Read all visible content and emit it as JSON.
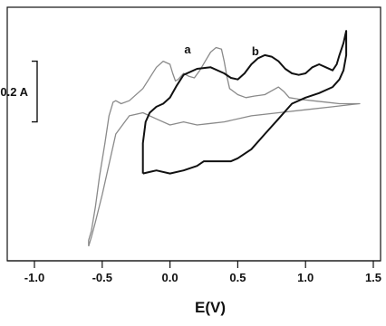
{
  "chart_data": {
    "type": "line",
    "title": "",
    "xlabel": "E(V)",
    "ylabel": "",
    "xlim": [
      -1.0,
      1.5
    ],
    "ylim": [
      -0.4,
      0.4
    ],
    "x_ticks": [
      "-1.0",
      "-0.5",
      "0.0",
      "0.5",
      "1.0",
      "1.5"
    ],
    "x_tick_values": [
      -1.0,
      -0.5,
      0.0,
      0.5,
      1.0,
      1.5
    ],
    "grid": false,
    "legend": "none",
    "scale_bar": {
      "label": "0.2 A",
      "value": 0.2,
      "anchor_x": -0.98,
      "anchor_y_top": 0.24
    },
    "series": [
      {
        "name": "a",
        "label_at": [
          0.13,
          0.265
        ],
        "color": "#8a8a8a",
        "x": [
          -0.6,
          -0.6,
          -0.58,
          -0.55,
          -0.52,
          -0.48,
          -0.45,
          -0.42,
          -0.4,
          -0.36,
          -0.3,
          -0.2,
          -0.1,
          -0.05,
          0.0,
          0.02,
          0.04,
          0.06,
          0.1,
          0.14,
          0.18,
          0.22,
          0.26,
          0.3,
          0.34,
          0.38,
          0.4,
          0.42,
          0.44,
          0.5,
          0.56,
          0.62,
          0.7,
          0.76,
          0.8,
          0.84,
          0.88,
          0.95,
          1.05,
          1.15,
          1.25,
          1.35,
          1.4,
          1.35,
          1.2,
          1.0,
          0.8,
          0.6,
          0.4,
          0.3,
          0.2,
          0.1,
          0.0,
          -0.1,
          -0.2,
          -0.3,
          -0.4,
          -0.45,
          -0.5,
          -0.55,
          -0.58,
          -0.6
        ],
        "y": [
          -0.37,
          -0.35,
          -0.32,
          -0.24,
          -0.14,
          -0.03,
          0.06,
          0.105,
          0.11,
          0.1,
          0.11,
          0.15,
          0.22,
          0.24,
          0.23,
          0.2,
          0.175,
          0.18,
          0.2,
          0.19,
          0.185,
          0.21,
          0.24,
          0.27,
          0.285,
          0.28,
          0.24,
          0.19,
          0.15,
          0.13,
          0.12,
          0.125,
          0.13,
          0.145,
          0.155,
          0.14,
          0.12,
          0.115,
          0.11,
          0.105,
          0.1,
          0.1,
          0.1,
          0.098,
          0.09,
          0.08,
          0.07,
          0.06,
          0.04,
          0.035,
          0.03,
          0.04,
          0.03,
          0.05,
          0.07,
          0.06,
          0.0,
          -0.1,
          -0.2,
          -0.29,
          -0.34,
          -0.37
        ]
      },
      {
        "name": "b",
        "label_at": [
          0.63,
          0.26
        ],
        "color": "#111111",
        "x": [
          -0.2,
          -0.2,
          -0.18,
          -0.15,
          -0.1,
          -0.05,
          0.0,
          0.05,
          0.1,
          0.2,
          0.3,
          0.4,
          0.45,
          0.5,
          0.55,
          0.6,
          0.65,
          0.7,
          0.75,
          0.8,
          0.85,
          0.9,
          0.95,
          1.0,
          1.05,
          1.1,
          1.15,
          1.2,
          1.23,
          1.25,
          1.28,
          1.3,
          1.3,
          1.28,
          1.25,
          1.2,
          1.1,
          1.0,
          0.9,
          0.8,
          0.7,
          0.6,
          0.5,
          0.45,
          0.4,
          0.35,
          0.3,
          0.25,
          0.2,
          0.1,
          0.0,
          -0.1,
          -0.15,
          -0.2
        ],
        "y": [
          -0.13,
          -0.03,
          0.04,
          0.07,
          0.09,
          0.1,
          0.12,
          0.16,
          0.195,
          0.215,
          0.22,
          0.2,
          0.185,
          0.18,
          0.2,
          0.23,
          0.25,
          0.26,
          0.255,
          0.24,
          0.215,
          0.2,
          0.195,
          0.2,
          0.22,
          0.23,
          0.22,
          0.21,
          0.23,
          0.26,
          0.3,
          0.34,
          0.26,
          0.21,
          0.18,
          0.155,
          0.135,
          0.12,
          0.1,
          0.05,
          0.0,
          -0.05,
          -0.08,
          -0.09,
          -0.09,
          -0.09,
          -0.09,
          -0.09,
          -0.105,
          -0.12,
          -0.13,
          -0.12,
          -0.125,
          -0.13
        ]
      }
    ]
  }
}
